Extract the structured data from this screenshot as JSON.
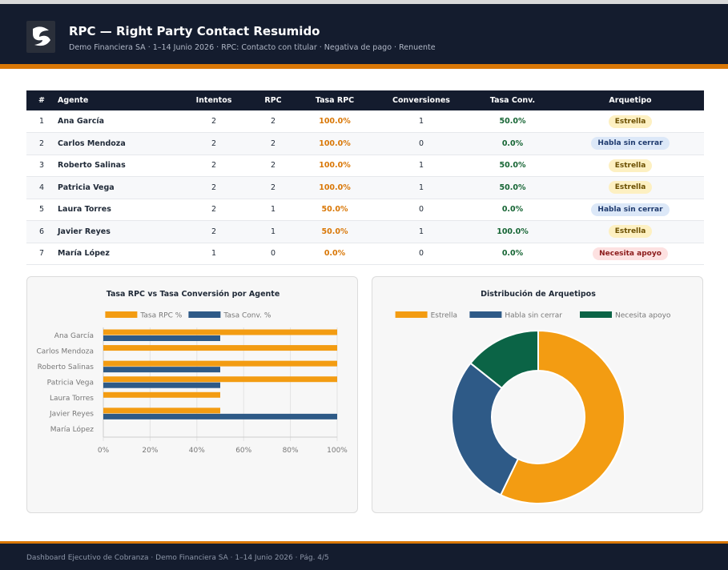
{
  "header": {
    "title": "RPC — Right Party Contact Resumido",
    "subtitle": "Demo Financiera SA · 1–14 Junio 2026 · RPC: Contacto con titular · Negativa de pago · Renuente"
  },
  "table": {
    "columns": [
      "#",
      "Agente",
      "Intentos",
      "RPC",
      "Tasa RPC",
      "Conversiones",
      "Tasa Conv.",
      "Arquetipo"
    ],
    "rows": [
      [
        "1",
        "Ana García",
        "2",
        "2",
        "100.0%",
        "1",
        "50.0%",
        "Estrella"
      ],
      [
        "2",
        "Carlos Mendoza",
        "2",
        "2",
        "100.0%",
        "0",
        "0.0%",
        "Habla sin cerrar"
      ],
      [
        "3",
        "Roberto Salinas",
        "2",
        "2",
        "100.0%",
        "1",
        "50.0%",
        "Estrella"
      ],
      [
        "4",
        "Patricia Vega",
        "2",
        "2",
        "100.0%",
        "1",
        "50.0%",
        "Estrella"
      ],
      [
        "5",
        "Laura Torres",
        "2",
        "1",
        "50.0%",
        "0",
        "0.0%",
        "Habla sin cerrar"
      ],
      [
        "6",
        "Javier Reyes",
        "2",
        "1",
        "50.0%",
        "1",
        "100.0%",
        "Estrella"
      ],
      [
        "7",
        "María López",
        "1",
        "0",
        "0.0%",
        "0",
        "0.0%",
        "Necesita apoyo"
      ]
    ]
  },
  "chart_data": [
    {
      "type": "hbar",
      "title": "Tasa RPC vs Tasa Conversión por Agente",
      "categories": [
        "Ana García",
        "Carlos Mendoza",
        "Roberto Salinas",
        "Patricia Vega",
        "Laura Torres",
        "Javier Reyes",
        "María López"
      ],
      "series": [
        {
          "name": "Tasa RPC %",
          "color": "#f39c12",
          "values": [
            100,
            100,
            100,
            100,
            50,
            50,
            0
          ]
        },
        {
          "name": "Tasa Conv. %",
          "color": "#2e5a87",
          "values": [
            50,
            0,
            50,
            50,
            0,
            100,
            0
          ]
        }
      ],
      "xlim": [
        0,
        100
      ],
      "xticks": [
        {
          "value": 0,
          "label": "0%"
        },
        {
          "value": 20,
          "label": "20%"
        },
        {
          "value": 40,
          "label": "40%"
        },
        {
          "value": 60,
          "label": "60%"
        },
        {
          "value": 80,
          "label": "80%"
        },
        {
          "value": 100,
          "label": "100%"
        }
      ],
      "grid": true
    },
    {
      "type": "donut",
      "title": "Distribución de Arquetipos",
      "categories": [
        "Estrella",
        "Habla sin cerrar",
        "Necesita apoyo"
      ],
      "values": [
        4,
        2,
        1
      ],
      "colors": [
        "#f39c12",
        "#2e5a87",
        "#0b6446"
      ]
    }
  ],
  "footer": {
    "text": "Dashboard Ejecutivo de Cobranza · Demo Financiera SA · 1–14 Junio 2026 · Pág. 4/5"
  }
}
